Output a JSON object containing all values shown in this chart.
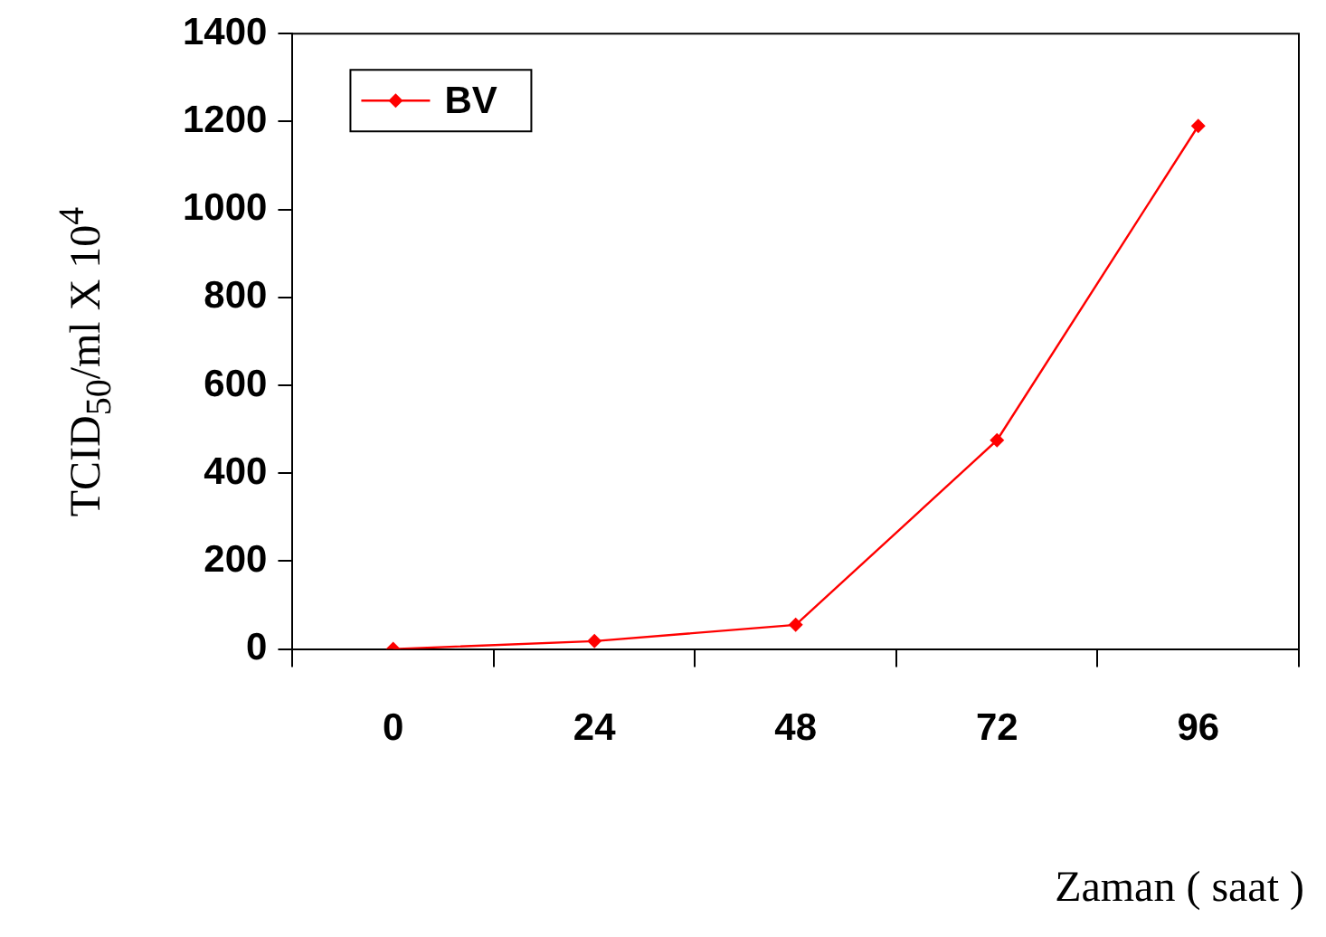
{
  "chart_data": {
    "type": "line",
    "xlabel": "Zaman ( saat )",
    "ylabel": "TCID$_{50}$/ml X 10$^{4}$",
    "categories": [
      "0",
      "24",
      "48",
      "72",
      "96"
    ],
    "series": [
      {
        "name": "BV",
        "color": "#ff0000",
        "values": [
          0,
          18,
          55,
          475,
          1190
        ]
      }
    ],
    "ylim": [
      0,
      1400
    ],
    "yticks": [
      0,
      200,
      400,
      600,
      800,
      1000,
      1200,
      1400
    ],
    "grid": false,
    "legend": "top left",
    "marker": "diamond",
    "line_style": "solid"
  }
}
